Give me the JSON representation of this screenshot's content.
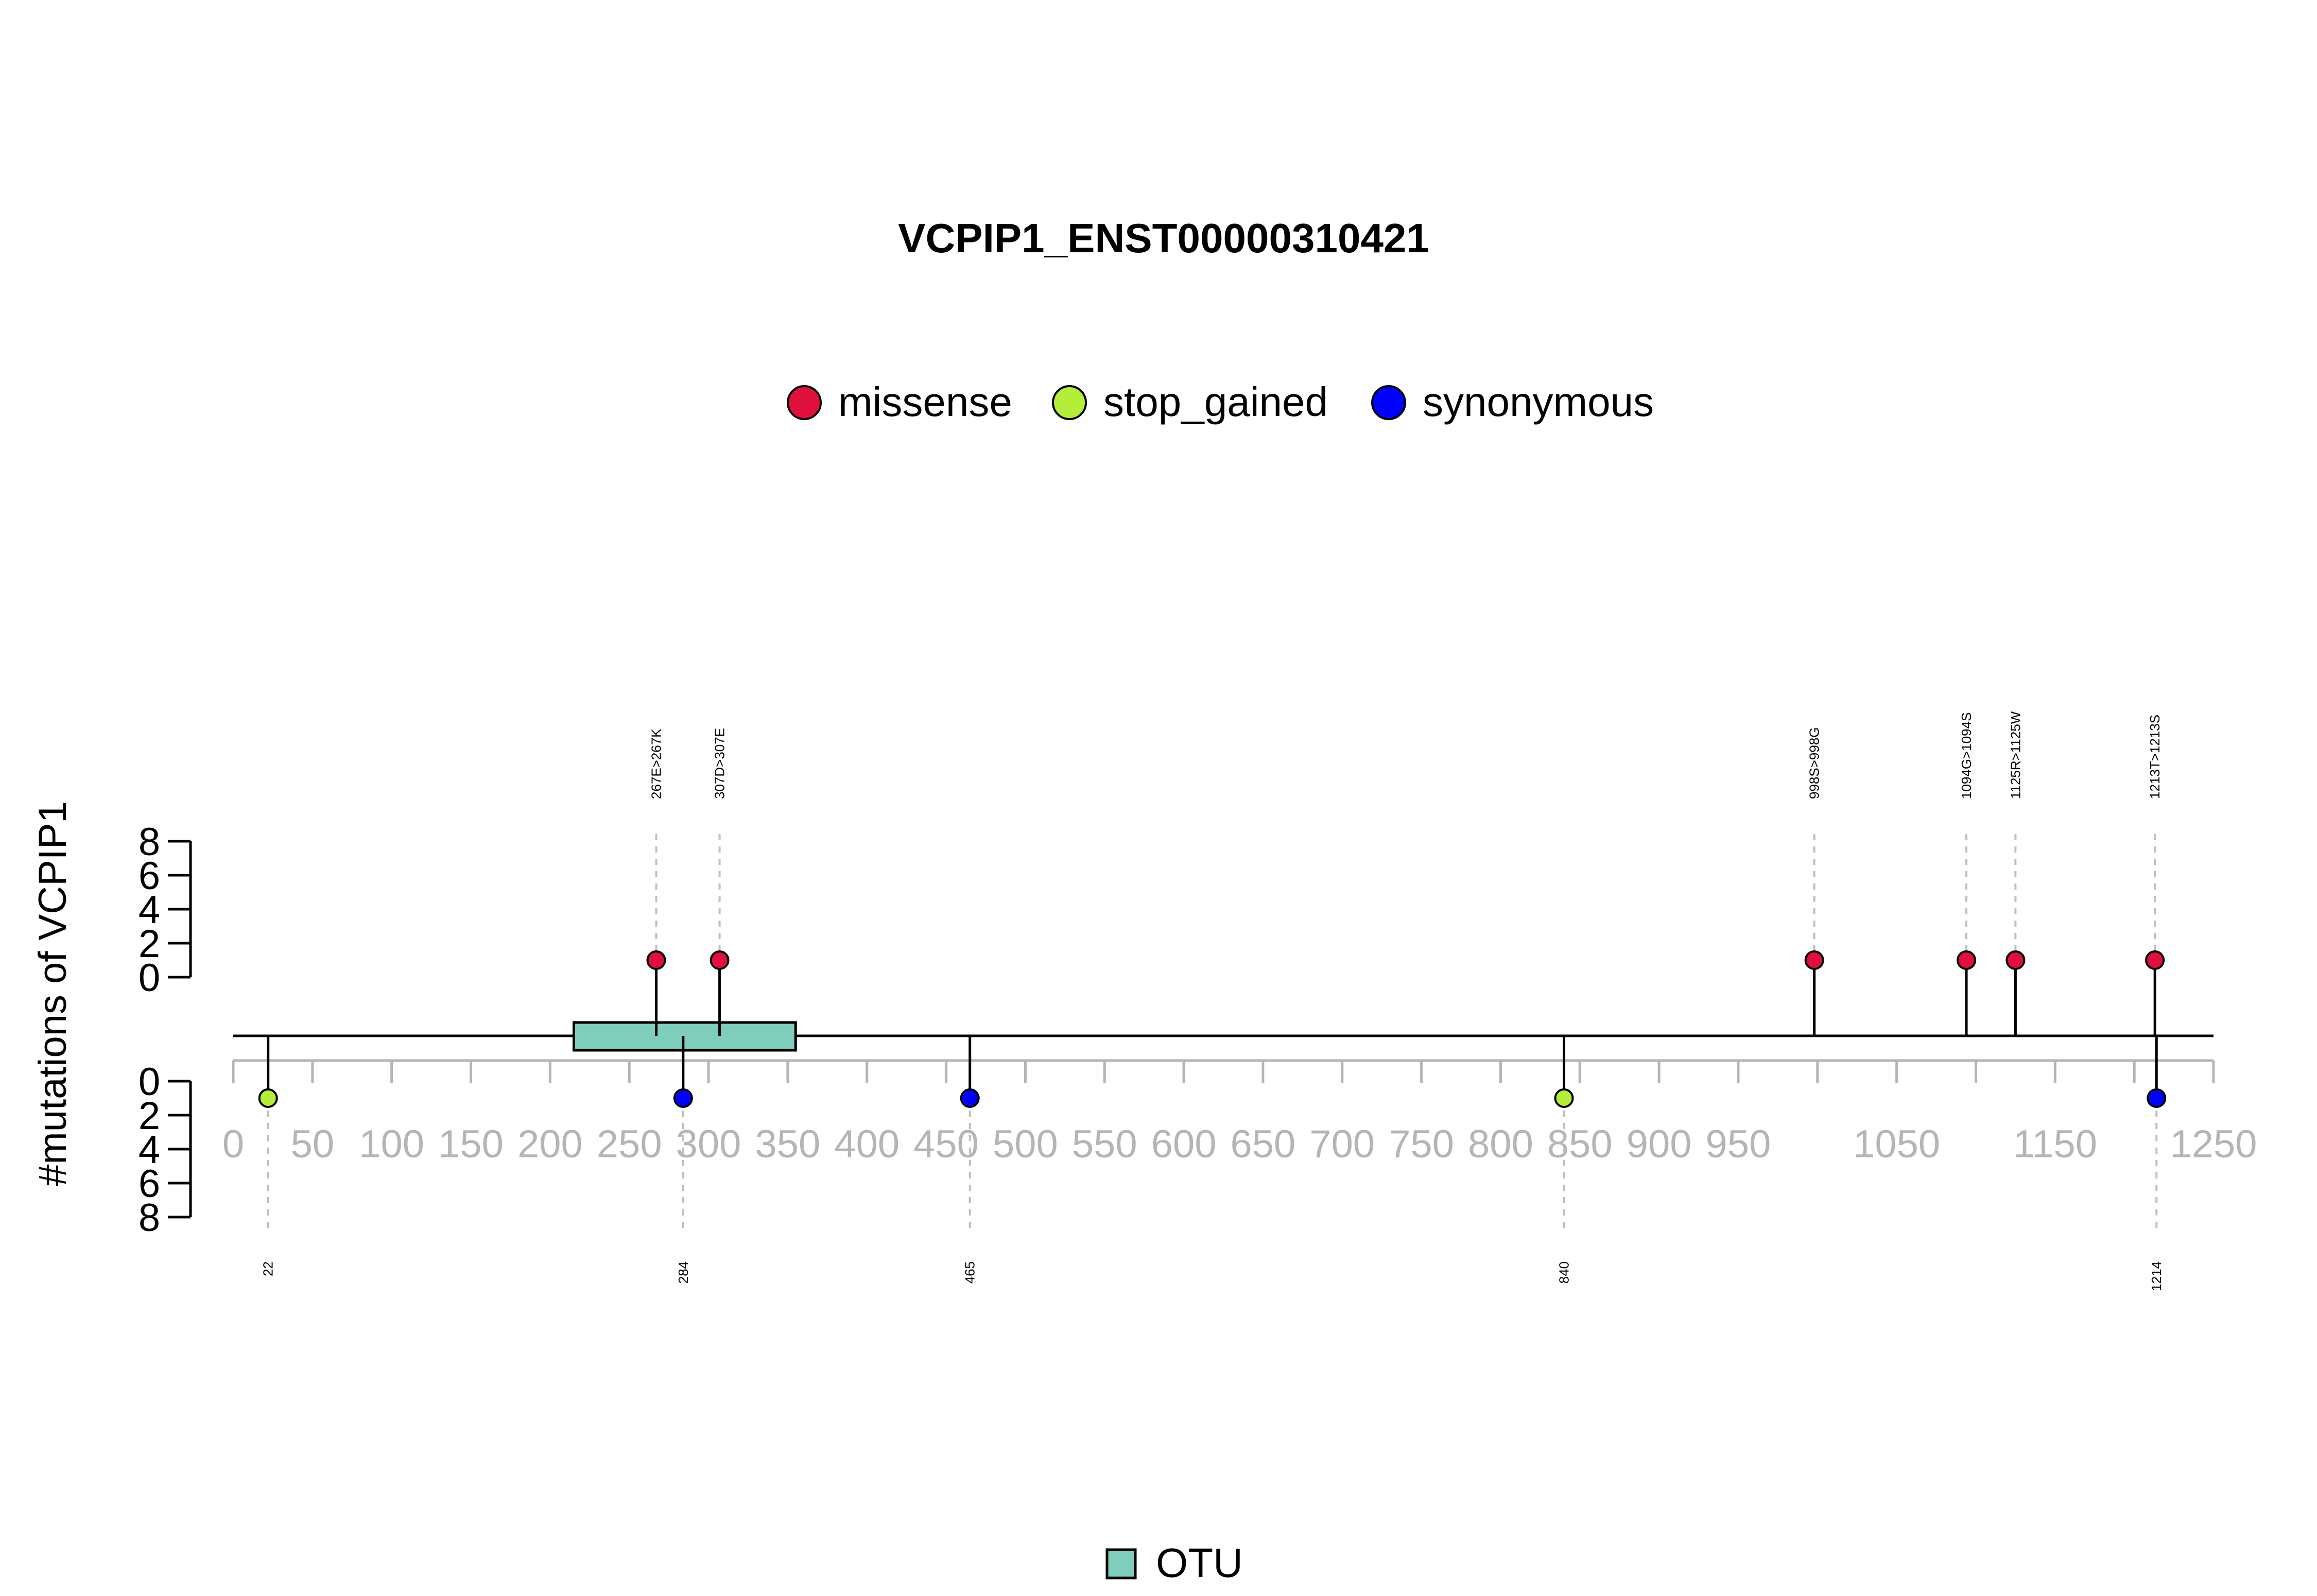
{
  "chart_data": {
    "type": "lollipop",
    "title": "VCPIP1_ENST00000310421",
    "ylabel": "#mutations of VCPIP1",
    "xlim": [
      0,
      1250
    ],
    "x_ticks": [
      0,
      50,
      100,
      150,
      200,
      250,
      300,
      350,
      400,
      450,
      500,
      550,
      600,
      650,
      700,
      750,
      800,
      850,
      900,
      950,
      1050,
      1150,
      1250
    ],
    "x_minor_ticks": [
      0,
      50,
      100,
      150,
      200,
      250,
      300,
      350,
      400,
      450,
      500,
      550,
      600,
      650,
      700,
      750,
      800,
      850,
      900,
      950,
      1000,
      1050,
      1100,
      1150,
      1200,
      1250
    ],
    "y_ticks": [
      0,
      2,
      4,
      6,
      8
    ],
    "ylim": [
      0,
      8
    ],
    "legend": [
      {
        "name": "missense",
        "color": "#e0103c"
      },
      {
        "name": "stop_gained",
        "color": "#b3ee3a"
      },
      {
        "name": "synonymous",
        "color": "#0000ff"
      }
    ],
    "domains": [
      {
        "name": "OTU",
        "start": 215,
        "end": 355,
        "color": "#7fcdbb"
      }
    ],
    "top_mutations": [
      {
        "position": 267,
        "count": 1,
        "type": "missense",
        "label": "267E>267K"
      },
      {
        "position": 307,
        "count": 1,
        "type": "missense",
        "label": "307D>307E"
      },
      {
        "position": 998,
        "count": 1,
        "type": "missense",
        "label": "998S>998G"
      },
      {
        "position": 1094,
        "count": 1,
        "type": "missense",
        "label": "1094G>1094S"
      },
      {
        "position": 1125,
        "count": 1,
        "type": "missense",
        "label": "1125R>1125W"
      },
      {
        "position": 1213,
        "count": 1,
        "type": "missense",
        "label": "1213T>1213S"
      }
    ],
    "bottom_mutations": [
      {
        "position": 22,
        "count": 1,
        "type": "stop_gained",
        "label": "22"
      },
      {
        "position": 284,
        "count": 1,
        "type": "synonymous",
        "label": "284"
      },
      {
        "position": 465,
        "count": 1,
        "type": "synonymous",
        "label": "465"
      },
      {
        "position": 840,
        "count": 1,
        "type": "stop_gained",
        "label": "840"
      },
      {
        "position": 1214,
        "count": 1,
        "type": "synonymous",
        "label": "1214"
      }
    ]
  }
}
